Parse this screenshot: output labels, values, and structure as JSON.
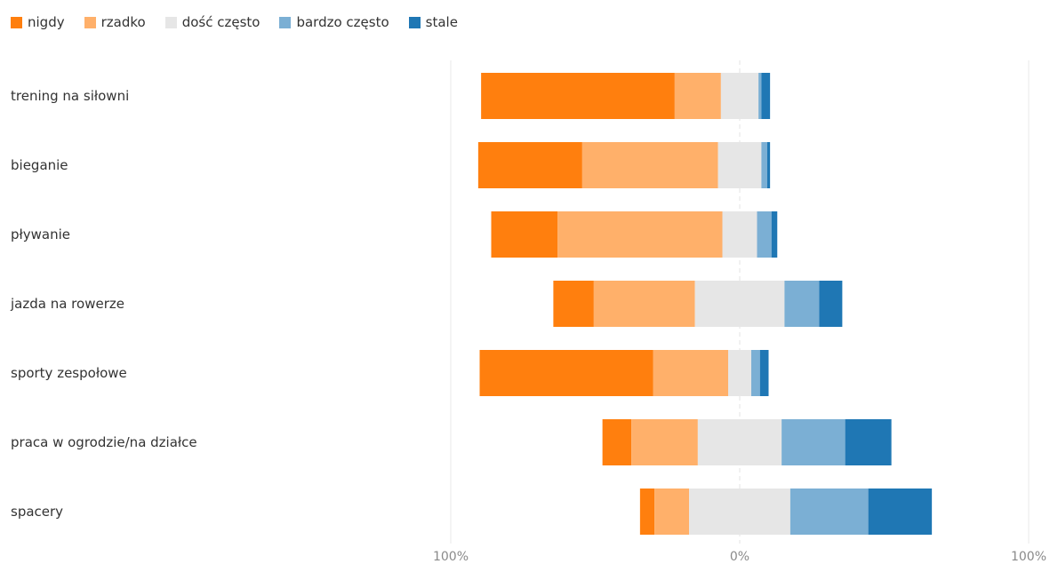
{
  "chart_data": {
    "type": "bar",
    "orientation": "horizontal",
    "stacking": "diverging",
    "categories": [
      "trening na siłowni",
      "bieganie",
      "pływanie",
      "jazda na rowerze",
      "sporty zespołowe",
      "praca w ogrodzie/na działce",
      "spacery"
    ],
    "series": [
      {
        "name": "nigdy",
        "color": "#ff7f0e",
        "values": [
          67,
          36,
          23,
          14,
          60,
          10,
          5
        ]
      },
      {
        "name": "rzadko",
        "color": "#ffb06a",
        "values": [
          16,
          47,
          57,
          35,
          26,
          23,
          12
        ]
      },
      {
        "name": "dość często",
        "color": "#e6e6e6",
        "values": [
          13,
          15,
          12,
          31,
          8,
          29,
          35
        ]
      },
      {
        "name": "bardzo często",
        "color": "#7bafd4",
        "values": [
          1,
          2,
          5,
          12,
          3,
          22,
          27
        ]
      },
      {
        "name": "stale",
        "color": "#1f77b4",
        "values": [
          3,
          1,
          2,
          8,
          3,
          16,
          22
        ]
      }
    ],
    "neutral_series": "dość często",
    "x_ticks": [
      "100%",
      "0%",
      "100%"
    ],
    "xlim": [
      -100,
      100
    ],
    "grid": true,
    "legend_position": "top-left"
  }
}
